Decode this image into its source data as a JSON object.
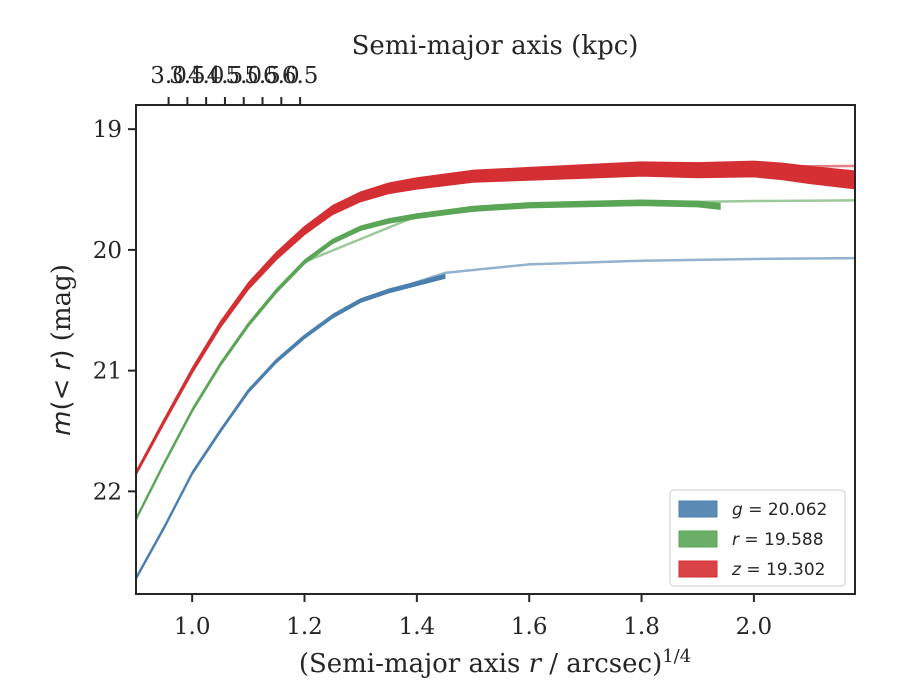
{
  "chart_data": {
    "type": "line",
    "xlabel": "(Semi-major axis r / arcsec)^{1/4}",
    "xlabel_parts": {
      "pre": "(Semi-major axis ",
      "var": "r",
      "post": " / arcsec)",
      "sup": "1/4"
    },
    "x2label": "Semi-major axis (kpc)",
    "ylabel": "m(< r) (mag)",
    "ylabel_parts": {
      "pre": "m",
      "mid": "(< ",
      "var": "r",
      "post": ") (mag)"
    },
    "xlim": [
      0.9,
      2.18
    ],
    "ylim": [
      22.85,
      18.8
    ],
    "y_inverted": true,
    "x_ticks": [
      1.0,
      1.2,
      1.4,
      1.6,
      1.8,
      2.0
    ],
    "x_tick_labels": [
      "1.0",
      "1.2",
      "1.4",
      "1.6",
      "1.8",
      "2.0"
    ],
    "x2_ticks": [
      3.0,
      3.5,
      4.0,
      4.5,
      5.0,
      5.5,
      6.0,
      6.5
    ],
    "x2_tick_labels": [
      "3.0",
      "3.5",
      "4.0",
      "4.5",
      "5.0",
      "5.5",
      "6.0",
      "6.5"
    ],
    "x2_to_x": {
      "a": 0.7573,
      "b": 0.0669,
      "note_label": ""
    },
    "y_ticks": [
      19,
      20,
      21,
      22
    ],
    "y_tick_labels": [
      "19",
      "20",
      "21",
      "22"
    ],
    "legend": {
      "position": "lower-right",
      "entries": [
        {
          "var": "g",
          "text": " = 20.062",
          "color": "#4a7fae"
        },
        {
          "var": "r",
          "text": " = 19.588",
          "color": "#5aa556"
        },
        {
          "var": "z",
          "text": " = 19.302",
          "color": "#d42f32"
        }
      ]
    },
    "series": [
      {
        "name": "g = 20.062",
        "color": "#4a7fae",
        "band_width": [
          3,
          4
        ],
        "x": [
          0.9,
          0.95,
          1.0,
          1.05,
          1.1,
          1.15,
          1.2,
          1.25,
          1.3,
          1.35,
          1.4,
          1.45
        ],
        "y": [
          22.72,
          22.3,
          21.85,
          21.5,
          21.17,
          20.92,
          20.72,
          20.55,
          20.42,
          20.34,
          20.28,
          20.22
        ],
        "model": {
          "x": [
            1.3,
            1.45,
            1.6,
            1.8,
            2.0,
            2.18
          ],
          "y": [
            20.42,
            20.19,
            20.12,
            20.09,
            20.075,
            20.068
          ]
        }
      },
      {
        "name": "r = 19.588",
        "color": "#5aa556",
        "band_width": [
          3,
          6
        ],
        "x": [
          0.9,
          0.95,
          1.0,
          1.05,
          1.1,
          1.15,
          1.2,
          1.25,
          1.3,
          1.35,
          1.4,
          1.45,
          1.5,
          1.6,
          1.7,
          1.8,
          1.9,
          1.94
        ],
        "y": [
          22.23,
          21.77,
          21.33,
          20.95,
          20.62,
          20.34,
          20.1,
          19.93,
          19.82,
          19.76,
          19.72,
          19.69,
          19.66,
          19.63,
          19.62,
          19.61,
          19.62,
          19.64
        ],
        "model": {
          "x": [
            1.2,
            1.4,
            1.6,
            1.8,
            2.0,
            2.18
          ],
          "y": [
            20.1,
            19.72,
            19.63,
            19.61,
            19.595,
            19.59
          ]
        }
      },
      {
        "name": "z = 19.302",
        "color": "#d42f32",
        "band_width": [
          4,
          18
        ],
        "x": [
          0.9,
          0.95,
          1.0,
          1.05,
          1.1,
          1.15,
          1.2,
          1.25,
          1.3,
          1.35,
          1.4,
          1.5,
          1.6,
          1.7,
          1.8,
          1.9,
          2.0,
          2.05,
          2.1,
          2.18
        ],
        "y": [
          21.85,
          21.42,
          21.0,
          20.62,
          20.3,
          20.05,
          19.84,
          19.67,
          19.56,
          19.49,
          19.45,
          19.39,
          19.37,
          19.35,
          19.33,
          19.34,
          19.33,
          19.35,
          19.38,
          19.42
        ],
        "model": {
          "x": [
            1.5,
            1.8,
            2.0,
            2.18
          ],
          "y": [
            19.39,
            19.33,
            19.31,
            19.305
          ]
        }
      }
    ]
  }
}
